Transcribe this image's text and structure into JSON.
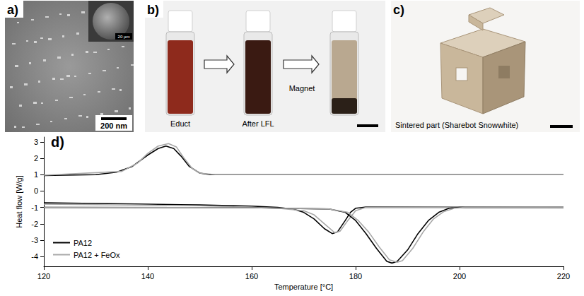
{
  "panels": [
    {
      "letter": "a)",
      "scale_bar": "200 nm",
      "inset_scale_bar": "20 µm"
    },
    {
      "letter": "b)",
      "labels": [
        "Educt",
        "After LFL",
        "Magnet"
      ]
    },
    {
      "letter": "c)",
      "caption": "Sintered part (Sharebot Snowwhite)"
    }
  ],
  "chart_data": {
    "letter": "d)",
    "type": "line",
    "x_label": "Temperature [°C]",
    "y_label": "Heat flow [W/g]",
    "xlim": [
      120,
      220
    ],
    "xticks": [
      120,
      140,
      160,
      180,
      200,
      220
    ],
    "ylim": [
      -4.6,
      3.3
    ],
    "yticks": [
      -4,
      -3,
      -2,
      -1,
      0,
      1,
      2,
      3
    ],
    "grid": false,
    "legend": "bottom-left",
    "series": [
      {
        "name": "PA12",
        "color": "#000000",
        "x": [
          120,
          130,
          134,
          137,
          140,
          142,
          143.5,
          145,
          146.5,
          148,
          150,
          152,
          160,
          220
        ],
        "values": [
          0.95,
          1.0,
          1.15,
          1.5,
          2.2,
          2.6,
          2.75,
          2.6,
          2.1,
          1.5,
          1.1,
          1.0,
          1.0,
          1.0
        ]
      },
      {
        "name": "PA12 + FeOx",
        "color": "#a8a8a8",
        "x": [
          120,
          135,
          138,
          140,
          142,
          144,
          145.5,
          147,
          148.5,
          150,
          153,
          220
        ],
        "values": [
          0.97,
          1.2,
          1.7,
          2.3,
          2.75,
          2.9,
          2.7,
          2.0,
          1.4,
          1.1,
          1.0,
          1.0
        ]
      },
      {
        "name": "PA12",
        "color": "#000000",
        "x": [
          120,
          130,
          140,
          150,
          160,
          165,
          168,
          170,
          172,
          174,
          175.5,
          176.5,
          178,
          179,
          180,
          182,
          220
        ],
        "values": [
          -0.72,
          -0.76,
          -0.8,
          -0.85,
          -0.92,
          -1.0,
          -1.1,
          -1.3,
          -1.7,
          -2.3,
          -2.6,
          -2.5,
          -1.8,
          -1.3,
          -1.05,
          -0.98,
          -1.0
        ]
      },
      {
        "name": "PA12 + FeOx",
        "color": "#a8a8a8",
        "x": [
          120,
          150,
          165,
          170,
          172,
          174,
          176,
          177,
          178.5,
          180,
          182,
          220
        ],
        "values": [
          -0.8,
          -0.9,
          -1.05,
          -1.2,
          -1.45,
          -2.0,
          -2.55,
          -2.45,
          -1.8,
          -1.2,
          -1.0,
          -1.0
        ]
      },
      {
        "name": "PA12",
        "color": "#000000",
        "x": [
          120,
          160,
          175,
          178,
          180,
          182,
          184,
          186,
          187,
          188,
          190,
          192,
          194,
          196,
          198,
          200,
          220
        ],
        "values": [
          -1.0,
          -1.02,
          -1.1,
          -1.3,
          -1.8,
          -2.6,
          -3.5,
          -4.3,
          -4.4,
          -4.3,
          -3.6,
          -2.6,
          -1.8,
          -1.3,
          -1.05,
          -1.0,
          -1.0
        ]
      },
      {
        "name": "PA12 + FeOx",
        "color": "#a8a8a8",
        "x": [
          120,
          160,
          175,
          178.5,
          180.5,
          182.5,
          184.5,
          186.5,
          188,
          189,
          191,
          193,
          195,
          197,
          199,
          201,
          220
        ],
        "values": [
          -1.0,
          -1.02,
          -1.1,
          -1.3,
          -1.8,
          -2.5,
          -3.4,
          -4.2,
          -4.35,
          -4.25,
          -3.5,
          -2.5,
          -1.7,
          -1.25,
          -1.05,
          -1.0,
          -1.0
        ]
      }
    ]
  }
}
